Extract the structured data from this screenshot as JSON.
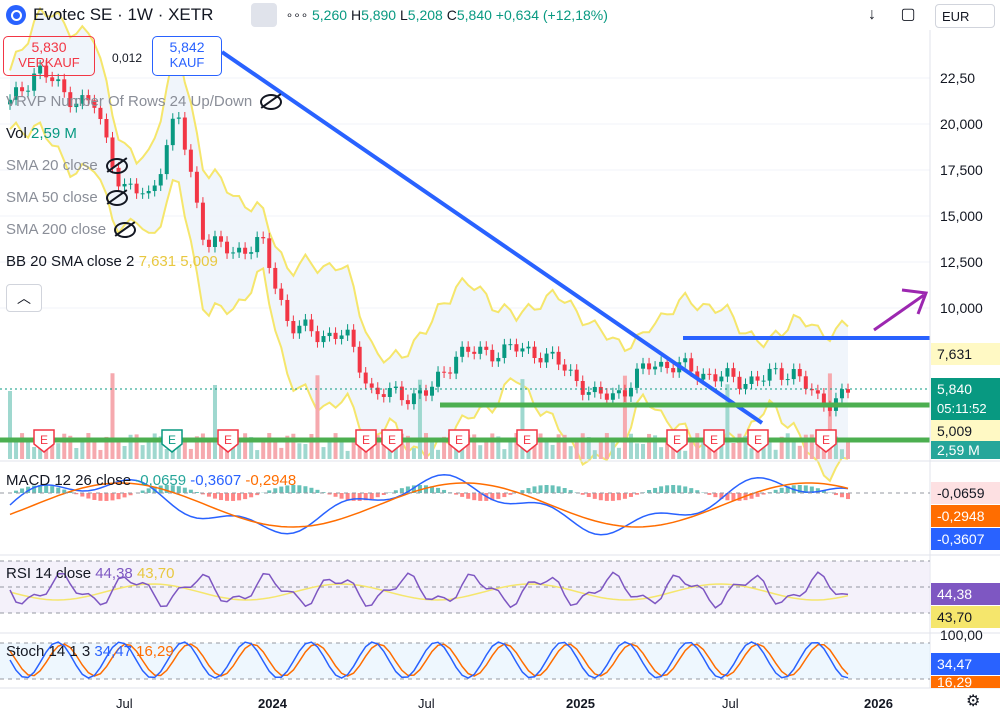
{
  "header": {
    "symbol": "Evotec SE · 1W · XETR",
    "ohlc": {
      "o": "5,260",
      "h": "5,890",
      "l": "5,208",
      "c": "5,840",
      "change": "+0,634 (+12,18%)"
    },
    "more_menu": "∘∘∘",
    "currency": "EUR"
  },
  "trade": {
    "sell_price": "5,830",
    "sell_label": "VERKAUF",
    "spread": "0,012",
    "buy_price": "5,842",
    "buy_label": "KAUF"
  },
  "legend": {
    "vrvp": "VRVP Number Of Rows 24 Up/Down",
    "vol": "Vol",
    "vol_value": "2,59 M",
    "sma1": "SMA 20 close",
    "sma2": "SMA 50 close",
    "sma3": "SMA 200 close",
    "bb": "BB 20 SMA close 2",
    "bb_upper": "7,631",
    "bb_lower": "5,009"
  },
  "price_axis": {
    "ticks": [
      "22,50",
      "20,000",
      "17,500",
      "15,000",
      "12,500",
      "10,000"
    ],
    "tags": {
      "bb_upper": "7,631",
      "last_price": "5,840",
      "countdown": "05:11:52",
      "bb_lower": "5,009",
      "volume": "2,59 M"
    }
  },
  "macd": {
    "title": "MACD 12 26 close",
    "v1": "-0,0659",
    "v2": "-0,3607",
    "v3": "-0,2948",
    "tags": [
      "-0,0659",
      "-0,2948",
      "-0,3607"
    ]
  },
  "rsi": {
    "title": "RSI 14 close",
    "v1": "44,38",
    "v2": "43,70",
    "tags": [
      "44,38",
      "43,70"
    ]
  },
  "stoch": {
    "title": "Stoch 14 1 3",
    "v1": "34,47",
    "v2": "16,29",
    "tags": [
      "100,00",
      "34,47",
      "16,29"
    ]
  },
  "time_axis": [
    "Jul",
    "2024",
    "Jul",
    "2025",
    "Jul",
    "2026"
  ],
  "colors": {
    "up": "#089981",
    "down": "#f23645",
    "trend": "#2962ff",
    "support": "#4caf50",
    "bb": "#f5e66c",
    "arrow": "#9c27b0"
  },
  "chart_data": {
    "type": "candlestick",
    "timeframe": "1W",
    "y_range": [
      3.5,
      25
    ],
    "x_range": [
      "2023-05",
      "2026-03"
    ],
    "price_series": [
      {
        "date": "2023-06",
        "close": 21.5
      },
      {
        "date": "2023-07",
        "close": 23.5
      },
      {
        "date": "2023-08",
        "close": 22.0
      },
      {
        "date": "2023-09",
        "close": 21.5
      },
      {
        "date": "2023-10",
        "close": 17.0
      },
      {
        "date": "2023-11",
        "close": 16.5
      },
      {
        "date": "2023-12",
        "close": 21.0
      },
      {
        "date": "2024-01",
        "close": 14.0
      },
      {
        "date": "2024-02",
        "close": 13.5
      },
      {
        "date": "2024-03",
        "close": 14.0
      },
      {
        "date": "2024-04",
        "close": 9.5
      },
      {
        "date": "2024-05",
        "close": 9.0
      },
      {
        "date": "2024-06",
        "close": 9.0
      },
      {
        "date": "2024-07",
        "close": 5.8
      },
      {
        "date": "2024-08",
        "close": 5.7
      },
      {
        "date": "2024-09",
        "close": 5.8
      },
      {
        "date": "2024-10",
        "close": 8.0
      },
      {
        "date": "2024-11",
        "close": 8.0
      },
      {
        "date": "2024-12",
        "close": 8.2
      },
      {
        "date": "2025-01",
        "close": 8.0
      },
      {
        "date": "2025-02",
        "close": 7.0
      },
      {
        "date": "2025-03",
        "close": 5.5
      },
      {
        "date": "2025-04",
        "close": 6.0
      },
      {
        "date": "2025-05",
        "close": 7.5
      },
      {
        "date": "2025-06",
        "close": 7.2
      },
      {
        "date": "2025-07",
        "close": 6.8
      },
      {
        "date": "2025-08",
        "close": 6.5
      },
      {
        "date": "2025-09",
        "close": 6.6
      },
      {
        "date": "2025-10",
        "close": 7.1
      },
      {
        "date": "2025-11",
        "close": 5.2
      },
      {
        "date": "2025-12",
        "close": 5.84
      }
    ],
    "horizontal_lines": [
      8.4,
      5.4,
      5.0
    ]
  }
}
